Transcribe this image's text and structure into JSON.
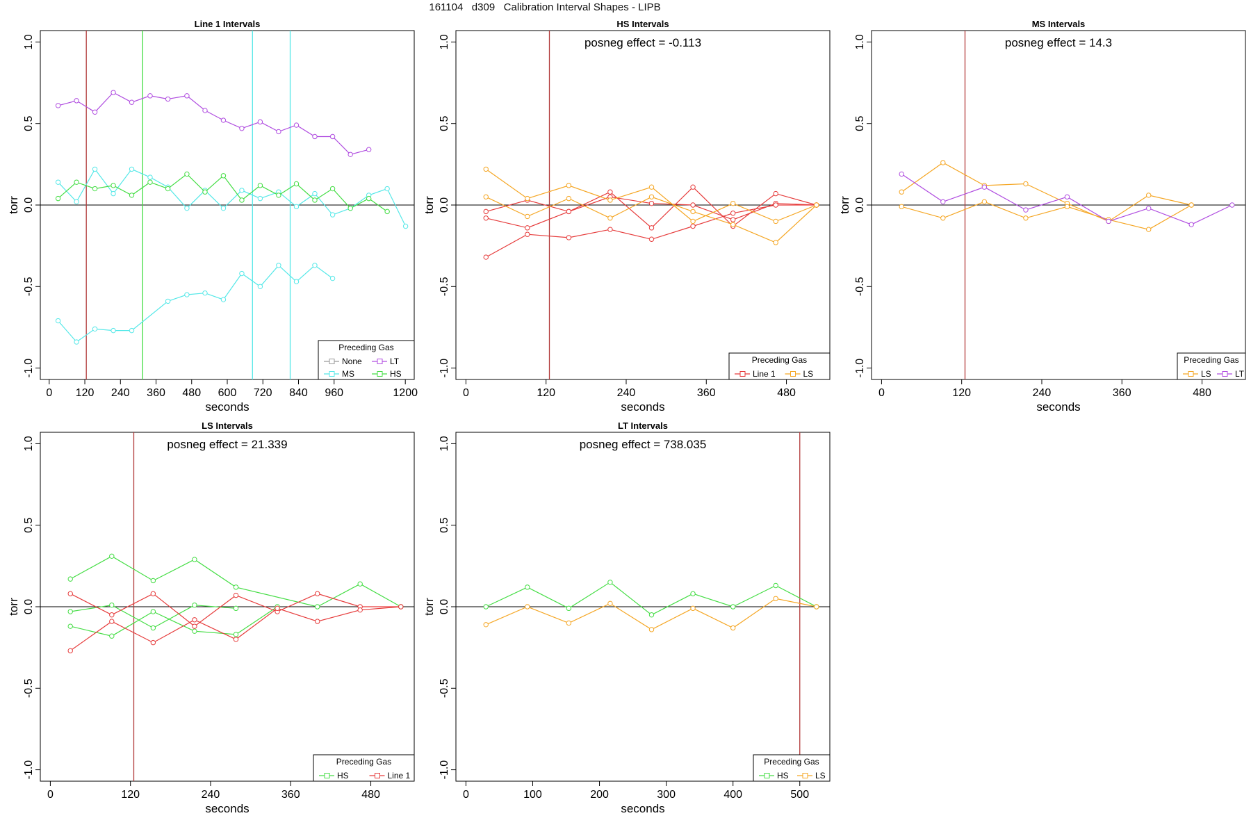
{
  "page_title": "161104   d309   Calibration Interval Shapes - LIPB",
  "colors": {
    "None": "#999999",
    "LT": "#b04de0",
    "MS": "#55e8e8",
    "HS": "#44dd44",
    "Line 1": "#e63b3b",
    "LS": "#f5a623",
    "marker_line": "#b23b3b",
    "zero_line": "#000000"
  },
  "chart_data": [
    {
      "type": "line",
      "title": "Line 1 Intervals",
      "xlabel": "seconds",
      "ylabel": "torr",
      "xlim": [
        -30,
        1230
      ],
      "ylim": [
        -1.07,
        1.07
      ],
      "xticks": [
        0,
        120,
        240,
        360,
        480,
        600,
        720,
        840,
        960,
        1200
      ],
      "yticks": [
        -1.0,
        -0.5,
        0.0,
        0.5,
        1.0
      ],
      "zero_line": true,
      "annotation": "",
      "vlines": [
        {
          "x": 125,
          "color": "Line 1"
        },
        {
          "x": 315,
          "color": "HS"
        },
        {
          "x": 685,
          "color": "MS"
        },
        {
          "x": 812,
          "color": "MS"
        }
      ],
      "legend": {
        "title": "Preceding Gas",
        "entries": [
          "None",
          "LT",
          "MS",
          "HS"
        ],
        "placement": "bottom-right"
      },
      "series": [
        {
          "name": "LT",
          "x": [
            30,
            92,
            154,
            216,
            278,
            340,
            400,
            464,
            525,
            587,
            649,
            711,
            773,
            833,
            895,
            955,
            1015,
            1077
          ],
          "y": [
            0.61,
            0.64,
            0.57,
            0.69,
            0.63,
            0.67,
            0.65,
            0.67,
            0.58,
            0.52,
            0.47,
            0.51,
            0.45,
            0.49,
            0.42,
            0.42,
            0.31,
            0.34
          ]
        },
        {
          "name": "MS",
          "x": [
            30,
            92,
            154,
            216,
            278,
            340,
            400,
            464,
            525,
            587,
            649,
            711,
            773,
            833,
            895,
            955,
            1015,
            1077,
            1139,
            1201
          ],
          "y": [
            0.14,
            0.02,
            0.22,
            0.07,
            0.22,
            0.17,
            0.11,
            -0.02,
            0.09,
            -0.02,
            0.09,
            0.04,
            0.08,
            -0.01,
            0.07,
            -0.06,
            -0.02,
            0.06,
            0.1,
            -0.13
          ]
        },
        {
          "name": "MS",
          "x": [
            30,
            92,
            154,
            216,
            278,
            400,
            464,
            525,
            587,
            649,
            711,
            773,
            833,
            895,
            955
          ],
          "y": [
            -0.71,
            -0.84,
            -0.76,
            -0.77,
            -0.77,
            -0.59,
            -0.55,
            -0.54,
            -0.58,
            -0.42,
            -0.5,
            -0.37,
            -0.47,
            -0.37,
            -0.45
          ]
        },
        {
          "name": "HS",
          "x": [
            30,
            92,
            154,
            216,
            278,
            340,
            400,
            464,
            525,
            587,
            649,
            711,
            773,
            833,
            895,
            955,
            1015,
            1077,
            1139
          ],
          "y": [
            0.04,
            0.14,
            0.1,
            0.12,
            0.06,
            0.14,
            0.1,
            0.19,
            0.08,
            0.18,
            0.03,
            0.12,
            0.06,
            0.13,
            0.03,
            0.1,
            -0.02,
            0.04,
            -0.04
          ]
        }
      ]
    },
    {
      "type": "line",
      "title": "HS Intervals",
      "xlabel": "seconds",
      "ylabel": "torr",
      "xlim": [
        -15,
        545
      ],
      "ylim": [
        -1.07,
        1.07
      ],
      "xticks": [
        0,
        120,
        240,
        360,
        480
      ],
      "yticks": [
        -1.0,
        -0.5,
        0.0,
        0.5,
        1.0
      ],
      "zero_line": true,
      "annotation": "posneg effect = -0.113",
      "vlines": [
        {
          "x": 125,
          "color": "Line 1"
        }
      ],
      "legend": {
        "title": "Preceding Gas",
        "entries": [
          "Line 1",
          "LS"
        ],
        "placement": "bottom-right"
      },
      "series": [
        {
          "name": "Line 1",
          "x": [
            30,
            92,
            154,
            216,
            278,
            340,
            400,
            464,
            525
          ],
          "y": [
            -0.04,
            0.03,
            -0.04,
            0.08,
            -0.14,
            0.11,
            -0.13,
            0.07,
            0.0
          ]
        },
        {
          "name": "Line 1",
          "x": [
            30,
            92,
            154,
            216,
            278,
            340,
            400,
            464,
            525
          ],
          "y": [
            -0.08,
            -0.14,
            -0.04,
            0.05,
            0.01,
            0.0,
            -0.09,
            0.01,
            0.0
          ]
        },
        {
          "name": "Line 1",
          "x": [
            30,
            92,
            154,
            216,
            278,
            340,
            400,
            464,
            525
          ],
          "y": [
            -0.32,
            -0.18,
            -0.2,
            -0.15,
            -0.21,
            -0.13,
            -0.05,
            0.0,
            0.0
          ]
        },
        {
          "name": "LS",
          "x": [
            30,
            92,
            154,
            216,
            278,
            340,
            400,
            464,
            525
          ],
          "y": [
            0.22,
            0.04,
            0.12,
            0.03,
            0.11,
            -0.1,
            0.01,
            -0.1,
            0.0
          ]
        },
        {
          "name": "LS",
          "x": [
            30,
            92,
            154,
            216,
            278,
            340,
            400,
            464,
            525
          ],
          "y": [
            0.05,
            -0.07,
            0.04,
            -0.08,
            0.05,
            -0.04,
            -0.12,
            -0.23,
            0.0
          ]
        }
      ]
    },
    {
      "type": "line",
      "title": "MS Intervals",
      "xlabel": "seconds",
      "ylabel": "torr",
      "xlim": [
        -15,
        545
      ],
      "ylim": [
        -1.07,
        1.07
      ],
      "xticks": [
        0,
        120,
        240,
        360,
        480
      ],
      "yticks": [
        -1.0,
        -0.5,
        0.0,
        0.5,
        1.0
      ],
      "zero_line": true,
      "annotation": "posneg effect = 14.3",
      "vlines": [
        {
          "x": 125,
          "color": "Line 1"
        }
      ],
      "legend": {
        "title": "Preceding Gas",
        "entries": [
          "LS",
          "LT"
        ],
        "placement": "bottom-right"
      },
      "series": [
        {
          "name": "LS",
          "x": [
            30,
            92,
            154,
            216,
            278,
            340,
            400,
            464
          ],
          "y": [
            0.08,
            0.26,
            0.12,
            0.13,
            0.01,
            -0.1,
            0.06,
            0.0
          ]
        },
        {
          "name": "LS",
          "x": [
            30,
            92,
            154,
            216,
            278,
            340,
            400,
            464
          ],
          "y": [
            -0.01,
            -0.08,
            0.02,
            -0.08,
            -0.01,
            -0.09,
            -0.15,
            0.0
          ]
        },
        {
          "name": "LT",
          "x": [
            30,
            92,
            154,
            216,
            278,
            340,
            400,
            464,
            525
          ],
          "y": [
            0.19,
            0.02,
            0.11,
            -0.03,
            0.05,
            -0.1,
            -0.02,
            -0.12,
            0.0
          ]
        }
      ]
    },
    {
      "type": "line",
      "title": "LS Intervals",
      "xlabel": "seconds",
      "ylabel": "torr",
      "xlim": [
        -15,
        545
      ],
      "ylim": [
        -1.07,
        1.07
      ],
      "xticks": [
        0,
        120,
        240,
        360,
        480
      ],
      "yticks": [
        -1.0,
        -0.5,
        0.0,
        0.5,
        1.0
      ],
      "zero_line": true,
      "annotation": "posneg effect = 21.339",
      "vlines": [
        {
          "x": 125,
          "color": "Line 1"
        }
      ],
      "legend": {
        "title": "Preceding Gas",
        "entries": [
          "HS",
          "Line 1"
        ],
        "placement": "bottom-right"
      },
      "series": [
        {
          "name": "HS",
          "x": [
            30,
            92,
            154,
            216,
            278,
            400,
            464,
            525
          ],
          "y": [
            0.17,
            0.31,
            0.16,
            0.29,
            0.12,
            0.0,
            0.14,
            0.0
          ]
        },
        {
          "name": "HS",
          "x": [
            30,
            92,
            154,
            216,
            278,
            340
          ],
          "y": [
            -0.12,
            -0.18,
            -0.03,
            -0.15,
            -0.17,
            0.0
          ]
        },
        {
          "name": "HS",
          "x": [
            30,
            92,
            154,
            216,
            278
          ],
          "y": [
            -0.03,
            0.01,
            -0.13,
            0.01,
            -0.01
          ]
        },
        {
          "name": "Line 1",
          "x": [
            30,
            92,
            154,
            216,
            278,
            340,
            400,
            464,
            525
          ],
          "y": [
            0.08,
            -0.05,
            0.08,
            -0.12,
            0.07,
            -0.03,
            0.08,
            0.0,
            0.0
          ]
        },
        {
          "name": "Line 1",
          "x": [
            30,
            92,
            154,
            216,
            278,
            340,
            400,
            464,
            525
          ],
          "y": [
            -0.27,
            -0.09,
            -0.22,
            -0.08,
            -0.2,
            -0.01,
            -0.09,
            -0.02,
            0.0
          ]
        }
      ]
    },
    {
      "type": "line",
      "title": "LT Intervals",
      "xlabel": "seconds",
      "ylabel": "torr",
      "xlim": [
        -15,
        545
      ],
      "ylim": [
        -1.07,
        1.07
      ],
      "xticks": [
        0,
        100,
        200,
        300,
        400,
        500
      ],
      "yticks": [
        -1.0,
        -0.5,
        0.0,
        0.5,
        1.0
      ],
      "zero_line": true,
      "annotation": "posneg effect = 738.035",
      "vlines": [
        {
          "x": 500,
          "color": "Line 1"
        }
      ],
      "legend": {
        "title": "Preceding Gas",
        "entries": [
          "HS",
          "LS"
        ],
        "placement": "bottom-right"
      },
      "series": [
        {
          "name": "HS",
          "x": [
            30,
            92,
            154,
            216,
            278,
            340,
            400,
            464,
            525
          ],
          "y": [
            0.0,
            0.12,
            -0.01,
            0.15,
            -0.05,
            0.08,
            0.0,
            0.13,
            0.0
          ]
        },
        {
          "name": "LS",
          "x": [
            30,
            92,
            154,
            216,
            278,
            340,
            400,
            464,
            525
          ],
          "y": [
            -0.11,
            0.0,
            -0.1,
            0.02,
            -0.14,
            -0.01,
            -0.13,
            0.05,
            0.0
          ]
        }
      ]
    }
  ]
}
